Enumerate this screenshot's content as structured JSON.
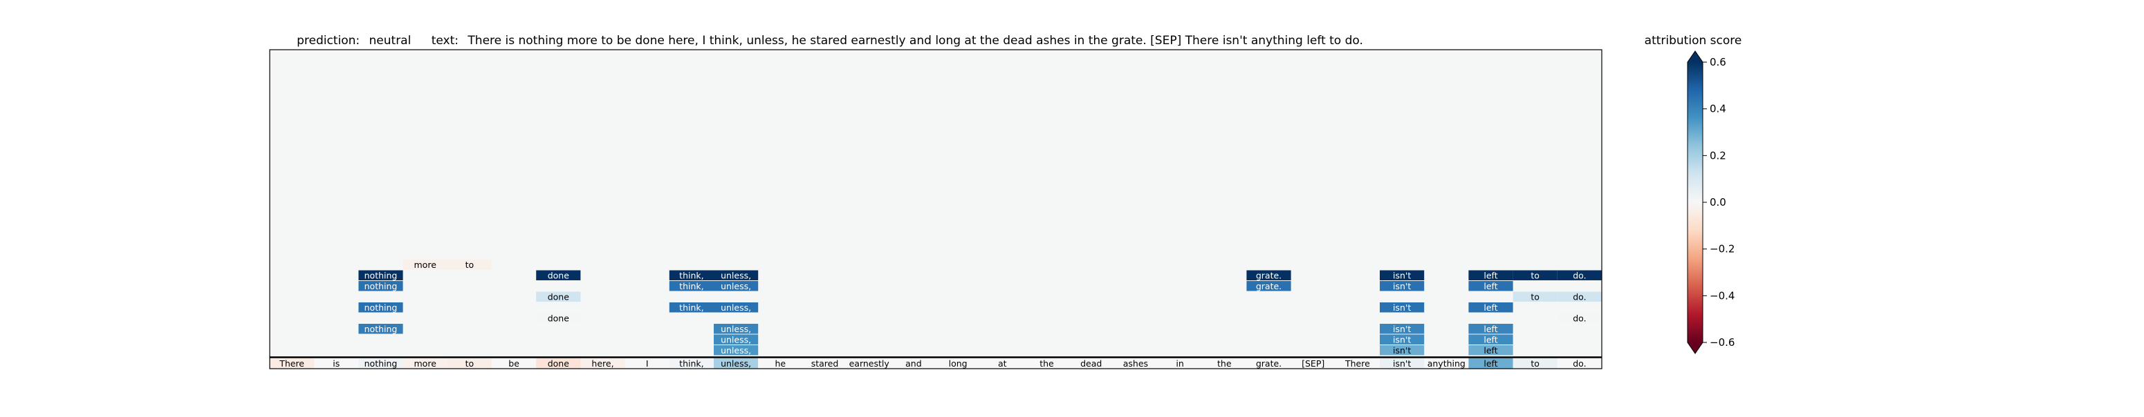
{
  "chart_data": {
    "type": "heatmap",
    "title": {
      "prediction_label": "prediction:",
      "prediction_value": "neutral",
      "text_label": "text:",
      "text_value": "There is nothing more to be done here, I think, unless, he stared earnestly and long at the dead ashes in the grate. [SEP] There isn't anything left to do."
    },
    "tokens": [
      "There",
      "is",
      "nothing",
      "more",
      "to",
      "be",
      "done",
      "here,",
      "I",
      "think,",
      "unless,",
      "he",
      "stared",
      "earnestly",
      "and",
      "long",
      "at",
      "the",
      "dead",
      "ashes",
      "in",
      "the",
      "grate.",
      "[SEP]",
      "There",
      "isn't",
      "anything",
      "left",
      "to",
      "do."
    ],
    "base_row_scores": [
      -0.05,
      0.0,
      0.03,
      -0.03,
      -0.04,
      0.0,
      -0.08,
      -0.03,
      0.0,
      0.02,
      0.2,
      0.0,
      0.0,
      0.0,
      0.0,
      0.0,
      0.0,
      0.0,
      0.0,
      0.0,
      0.0,
      0.0,
      0.0,
      0.0,
      0.0,
      0.04,
      0.0,
      0.3,
      0.04,
      0.0
    ],
    "layers": 12,
    "highlight_cells": [
      {
        "layer": 1,
        "token": 10,
        "score": 0.35
      },
      {
        "layer": 1,
        "token": 25,
        "score": 0.3
      },
      {
        "layer": 1,
        "token": 27,
        "score": 0.3
      },
      {
        "layer": 2,
        "token": 10,
        "score": 0.38
      },
      {
        "layer": 2,
        "token": 25,
        "score": 0.38
      },
      {
        "layer": 2,
        "token": 27,
        "score": 0.38
      },
      {
        "layer": 3,
        "token": 2,
        "score": 0.42
      },
      {
        "layer": 3,
        "token": 10,
        "score": 0.4
      },
      {
        "layer": 3,
        "token": 25,
        "score": 0.4
      },
      {
        "layer": 3,
        "token": 27,
        "score": 0.4
      },
      {
        "layer": 4,
        "token": 6,
        "score": 0.01
      },
      {
        "layer": 4,
        "token": 29,
        "score": 0.01
      },
      {
        "layer": 5,
        "token": 2,
        "score": 0.45
      },
      {
        "layer": 5,
        "token": 9,
        "score": 0.45
      },
      {
        "layer": 5,
        "token": 10,
        "score": 0.45
      },
      {
        "layer": 5,
        "token": 25,
        "score": 0.45
      },
      {
        "layer": 5,
        "token": 27,
        "score": 0.45
      },
      {
        "layer": 6,
        "token": 6,
        "score": 0.12
      },
      {
        "layer": 6,
        "token": 28,
        "score": 0.12
      },
      {
        "layer": 6,
        "token": 29,
        "score": 0.12
      },
      {
        "layer": 7,
        "token": 2,
        "score": 0.45
      },
      {
        "layer": 7,
        "token": 9,
        "score": 0.45
      },
      {
        "layer": 7,
        "token": 10,
        "score": 0.45
      },
      {
        "layer": 7,
        "token": 22,
        "score": 0.45
      },
      {
        "layer": 7,
        "token": 25,
        "score": 0.45
      },
      {
        "layer": 7,
        "token": 27,
        "score": 0.45
      },
      {
        "layer": 8,
        "token": 2,
        "score": 0.6
      },
      {
        "layer": 8,
        "token": 6,
        "score": 0.6
      },
      {
        "layer": 8,
        "token": 9,
        "score": 0.6
      },
      {
        "layer": 8,
        "token": 10,
        "score": 0.6
      },
      {
        "layer": 8,
        "token": 22,
        "score": 0.6
      },
      {
        "layer": 8,
        "token": 25,
        "score": 0.6
      },
      {
        "layer": 8,
        "token": 27,
        "score": 0.6
      },
      {
        "layer": 8,
        "token": 28,
        "score": 0.6
      },
      {
        "layer": 8,
        "token": 29,
        "score": 0.6
      },
      {
        "layer": 9,
        "token": 3,
        "score": -0.03
      },
      {
        "layer": 9,
        "token": 4,
        "score": -0.03
      }
    ],
    "colorbar": {
      "label": "attribution score",
      "range": [
        -0.6,
        0.6
      ],
      "ticks": [
        0.6,
        0.4,
        0.2,
        0.0,
        -0.2,
        -0.4,
        -0.6
      ],
      "tick_labels": [
        "0.6",
        "0.4",
        "0.2",
        "0.0",
        "−0.2",
        "−0.4",
        "−0.6"
      ],
      "colormap": "RdBu"
    },
    "grid": false,
    "colors": {
      "empty_cell": "#f5f6f6",
      "axis": "#000000"
    }
  }
}
